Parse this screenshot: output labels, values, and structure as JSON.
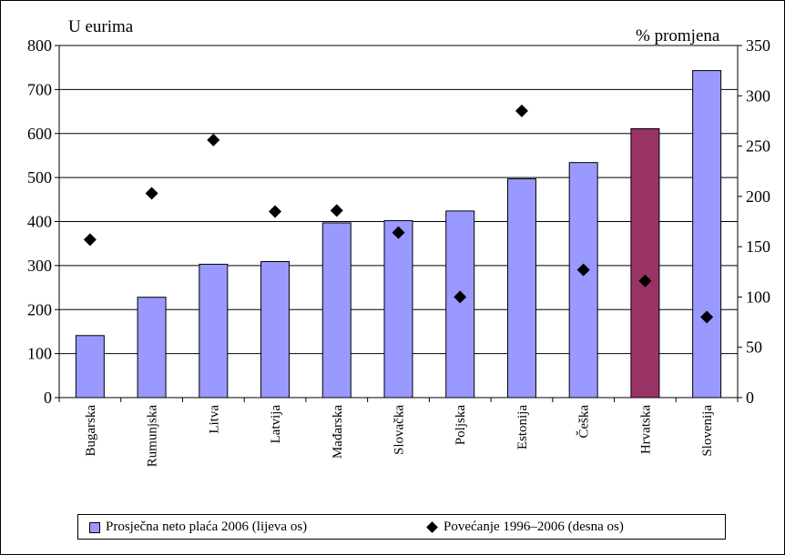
{
  "chart_data": {
    "type": "bar",
    "left_axis_title": "U eurima",
    "right_axis_title": "% promjena",
    "categories": [
      "Bugarska",
      "Rumunjska",
      "Litva",
      "Latvija",
      "Mađarska",
      "Slovačka",
      "Poljska",
      "Estonija",
      "Češka",
      "Hrvatska",
      "Slovenija"
    ],
    "series": [
      {
        "name": "Prosječna neto plaća 2006 (lijeva os)",
        "kind": "bar",
        "axis": "left",
        "values": [
          141,
          228,
          303,
          309,
          397,
          402,
          424,
          497,
          534,
          611,
          743
        ],
        "color": "#9999ff",
        "highlight_index": 9,
        "highlight_color": "#993366"
      },
      {
        "name": "Povećanje 1996–2006 (desna os)",
        "kind": "scatter",
        "axis": "right",
        "marker": "diamond",
        "values": [
          157,
          203,
          256,
          185,
          186,
          164,
          100,
          285,
          127,
          116,
          80
        ],
        "color": "#000000"
      }
    ],
    "left_ylim": [
      0,
      800
    ],
    "left_ticks": [
      0,
      100,
      200,
      300,
      400,
      500,
      600,
      700,
      800
    ],
    "right_ylim": [
      0,
      350
    ],
    "right_ticks": [
      0,
      50,
      100,
      150,
      200,
      250,
      300,
      350
    ],
    "grid": true,
    "legend_position": "bottom"
  }
}
